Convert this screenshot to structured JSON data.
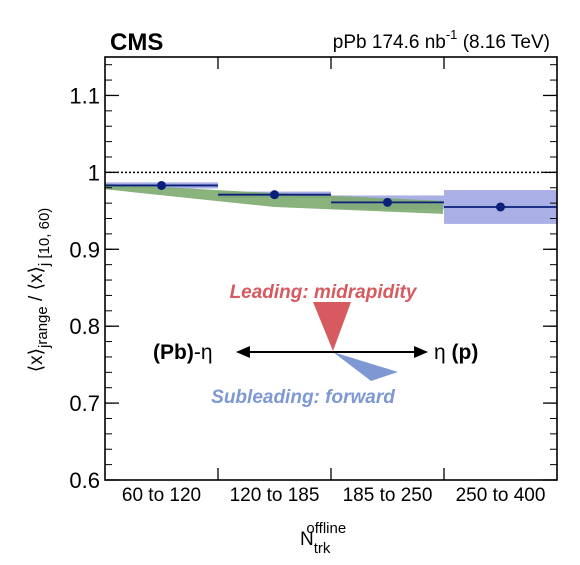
{
  "header": {
    "experiment": "CMS",
    "system": "pPb 174.6 nb",
    "lumi_exp": "-1",
    "energy": "(8.16 TeV)"
  },
  "axes": {
    "y_label_main": "⟨x⟩",
    "y_label_sub1": "j",
    "y_label_sub1b": "range",
    "y_label_div": " / ⟨x⟩",
    "y_label_sub2": "j [10, 60)",
    "x_label_main": "N",
    "x_label_sub": "trk",
    "x_label_sup": "offline"
  },
  "inset": {
    "leading_label": "Leading: midrapidity",
    "subleading_label": "Subleading: forward",
    "left_label_a": "(Pb)",
    "left_label_b": "-η",
    "right_label_a": "η",
    "right_label_b": "(p)"
  },
  "colors": {
    "data": "#0a1f7a",
    "syst_band": "#aab0e6",
    "model_band": "#7daa6e",
    "leading": "#d65a5f",
    "subleading": "#7e98d4",
    "reference_line": "#000000"
  },
  "chart_data": {
    "type": "scatter",
    "categories": [
      "60 to 120",
      "120 to 185",
      "185 to 250",
      "250 to 400"
    ],
    "ylim": [
      0.6,
      1.15
    ],
    "yticks": [
      "0.6",
      "0.7",
      "0.8",
      "0.9",
      "1",
      "1.1"
    ],
    "reference_y": 1.0,
    "series": [
      {
        "values": [
          0.983,
          0.971,
          0.961,
          0.955
        ],
        "syst": [
          0.004,
          0.004,
          0.009,
          0.022
        ]
      }
    ],
    "model_band": {
      "upper": [
        0.985,
        0.973,
        0.963
      ],
      "lower": [
        0.978,
        0.955,
        0.946
      ]
    }
  }
}
